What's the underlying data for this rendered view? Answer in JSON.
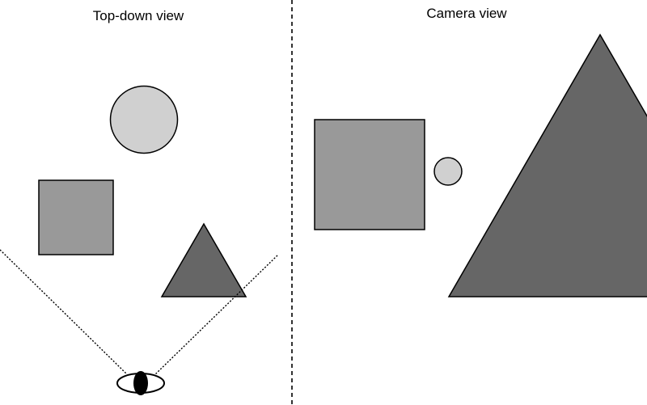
{
  "left_panel": {
    "title": "Top-down view"
  },
  "right_panel": {
    "title": "Camera view"
  },
  "colors": {
    "background": "#ffffff",
    "outline": "#000000",
    "circle_fill": "#d0d0d0",
    "square_fill": "#999999",
    "triangle_fill": "#666666",
    "eye_pupil": "#000000"
  },
  "icons": {
    "viewer": "eye-icon"
  }
}
